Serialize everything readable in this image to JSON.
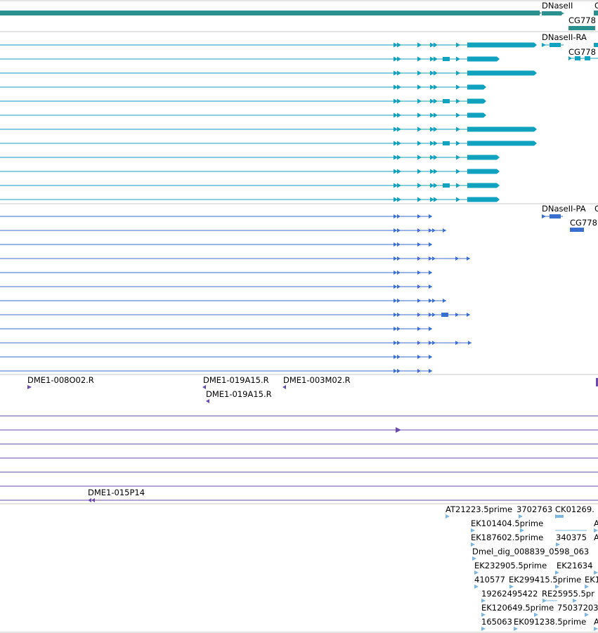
{
  "title": "",
  "colors": {
    "gene": "#2a8f8f",
    "mrna": "#10a2bf",
    "protein": "#3a6fcf",
    "clone": "#6a4ab0",
    "est": "#7ab6e0",
    "separator": "#c8c8c8"
  },
  "gene_track": {
    "labels": [
      "DNaseII",
      "CG778",
      "C"
    ]
  },
  "mrna_track": {
    "labels": [
      "DNaseII-RA",
      "CG778"
    ]
  },
  "protein_track": {
    "labels": [
      "DNaseII-PA",
      "CG778",
      "C"
    ]
  },
  "clone_track": {
    "labels": [
      "DME1-008O02.R",
      "DME1-019A15.R",
      "DME1-003M02.R",
      "DME1-019A15.R",
      "DME1-015P14"
    ]
  },
  "est_track": {
    "labels": [
      "AT21223.5prime",
      "3702763",
      "CK01269.",
      "EK101404.5prime",
      "A",
      "EK187602.5prime",
      "340375",
      "A",
      "Dmel_dig_008839_0598_063",
      "EK232905.5prime",
      "EK21634",
      "410577",
      "EK299415.5prime",
      "EK1",
      "19262495422",
      "RE25955.5pr",
      "EK120649.5prime",
      "75037203",
      "165063",
      "EK091238.5prime",
      "A"
    ]
  }
}
